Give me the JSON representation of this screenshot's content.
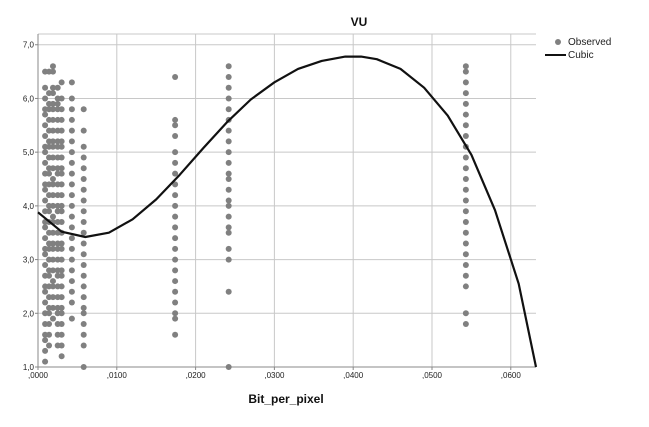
{
  "chart_data": {
    "type": "scatter",
    "title": "VU",
    "xlabel": "Bit_per_pixel",
    "ylabel": "",
    "xlim": [
      0.0,
      0.0632
    ],
    "ylim": [
      1.0,
      7.2
    ],
    "x_ticks": [
      0.0,
      0.01,
      0.02,
      0.03,
      0.04,
      0.05,
      0.06
    ],
    "x_tick_labels": [
      ",0000",
      ",0100",
      ",0200",
      ",0300",
      ",0400",
      ",0500",
      ",0600"
    ],
    "y_ticks": [
      1.0,
      2.0,
      3.0,
      4.0,
      5.0,
      6.0,
      7.0
    ],
    "y_tick_labels": [
      "1,0",
      "2,0",
      "3,0",
      "4,0",
      "5,0",
      "6,0",
      "7,0"
    ],
    "grid": true,
    "legend_position": "top-right",
    "legend": [
      "Observed",
      "Cubic"
    ],
    "colors": {
      "observed": "#808080",
      "cubic": "#111111",
      "grid": "#c8c8c8",
      "axis": "#888888"
    },
    "series": [
      {
        "name": "Observed",
        "kind": "points",
        "columns": [
          {
            "x": 0.0009,
            "y_values": [
              1.1,
              1.3,
              1.5,
              1.6,
              1.8,
              2.0,
              2.2,
              2.4,
              2.5,
              2.7,
              2.9,
              3.1,
              3.2,
              3.4,
              3.6,
              3.7,
              3.9,
              4.1,
              4.3,
              4.4,
              4.6,
              4.8,
              5.0,
              5.1,
              5.3,
              5.5,
              5.7,
              5.8,
              6.0,
              6.2,
              6.5
            ]
          },
          {
            "x": 0.0014,
            "y_values": [
              1.4,
              1.6,
              1.8,
              2.0,
              2.1,
              2.3,
              2.5,
              2.7,
              2.8,
              3.0,
              3.2,
              3.3,
              3.5,
              3.7,
              3.9,
              4.0,
              4.2,
              4.4,
              4.6,
              4.7,
              4.9,
              5.1,
              5.2,
              5.4,
              5.6,
              5.8,
              5.9,
              6.1,
              6.5
            ]
          },
          {
            "x": 0.0019,
            "y_values": [
              1.9,
              2.1,
              2.3,
              2.5,
              2.6,
              2.8,
              3.0,
              3.2,
              3.3,
              3.5,
              3.7,
              3.8,
              4.0,
              4.2,
              4.4,
              4.5,
              4.7,
              4.9,
              5.1,
              5.2,
              5.4,
              5.6,
              5.8,
              5.9,
              6.1,
              6.2,
              6.5,
              6.6
            ]
          },
          {
            "x": 0.0025,
            "y_values": [
              1.4,
              1.6,
              1.8,
              2.0,
              2.1,
              2.3,
              2.5,
              2.7,
              2.8,
              3.0,
              3.2,
              3.3,
              3.5,
              3.7,
              3.9,
              4.0,
              4.2,
              4.4,
              4.6,
              4.7,
              4.9,
              5.1,
              5.2,
              5.4,
              5.6,
              5.8,
              5.9,
              6.0,
              6.2
            ]
          },
          {
            "x": 0.003,
            "y_values": [
              1.2,
              1.4,
              1.6,
              1.8,
              2.0,
              2.1,
              2.3,
              2.5,
              2.7,
              2.8,
              3.0,
              3.2,
              3.3,
              3.5,
              3.7,
              3.9,
              4.0,
              4.2,
              4.4,
              4.6,
              4.7,
              4.9,
              5.1,
              5.2,
              5.4,
              5.6,
              5.8,
              6.0,
              6.3
            ]
          },
          {
            "x": 0.0043,
            "y_values": [
              1.9,
              2.2,
              2.4,
              2.6,
              2.8,
              3.0,
              3.2,
              3.4,
              3.6,
              3.8,
              4.0,
              4.2,
              4.4,
              4.6,
              4.8,
              5.0,
              5.2,
              5.4,
              5.6,
              5.8,
              6.0,
              6.3
            ]
          },
          {
            "x": 0.0058,
            "y_values": [
              1.0,
              1.4,
              1.6,
              1.8,
              2.0,
              2.1,
              2.3,
              2.5,
              2.7,
              2.9,
              3.1,
              3.3,
              3.5,
              3.7,
              3.9,
              4.1,
              4.3,
              4.5,
              4.7,
              4.9,
              5.1,
              5.4,
              5.8
            ]
          },
          {
            "x": 0.0174,
            "y_values": [
              1.6,
              1.9,
              2.0,
              2.2,
              2.4,
              2.6,
              2.8,
              3.0,
              3.2,
              3.4,
              3.6,
              3.8,
              4.0,
              4.2,
              4.4,
              4.6,
              4.8,
              5.0,
              5.3,
              5.5,
              5.6,
              6.4
            ]
          },
          {
            "x": 0.0242,
            "y_values": [
              1.0,
              2.4,
              3.0,
              3.2,
              3.5,
              3.6,
              3.8,
              4.0,
              4.1,
              4.3,
              4.5,
              4.6,
              4.8,
              5.0,
              5.2,
              5.4,
              5.6,
              5.8,
              6.0,
              6.2,
              6.4,
              6.6
            ]
          },
          {
            "x": 0.0543,
            "y_values": [
              1.8,
              2.0,
              2.5,
              2.7,
              2.9,
              3.1,
              3.3,
              3.5,
              3.7,
              3.9,
              4.1,
              4.3,
              4.5,
              4.7,
              4.9,
              5.1,
              5.3,
              5.5,
              5.7,
              5.9,
              6.1,
              6.3,
              6.5,
              6.6
            ]
          }
        ]
      },
      {
        "name": "Cubic",
        "kind": "line",
        "x": [
          0.0,
          0.003,
          0.006,
          0.009,
          0.012,
          0.015,
          0.018,
          0.021,
          0.024,
          0.027,
          0.03,
          0.033,
          0.036,
          0.039,
          0.041,
          0.043,
          0.046,
          0.049,
          0.052,
          0.055,
          0.058,
          0.061,
          0.0632
        ],
        "y": [
          3.88,
          3.52,
          3.42,
          3.5,
          3.75,
          4.12,
          4.58,
          5.08,
          5.56,
          5.98,
          6.3,
          6.55,
          6.7,
          6.78,
          6.78,
          6.73,
          6.55,
          6.2,
          5.68,
          4.95,
          3.92,
          2.55,
          1.0
        ]
      }
    ]
  }
}
